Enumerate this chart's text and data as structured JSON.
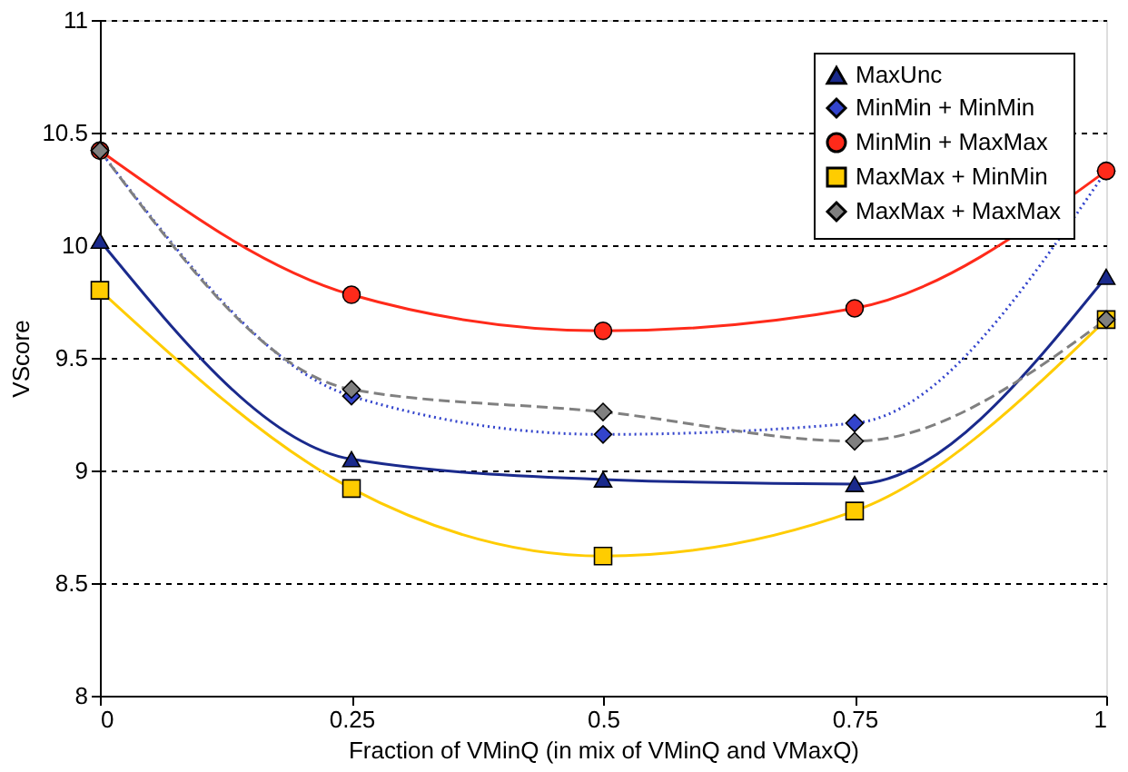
{
  "chart_data": {
    "type": "line",
    "xlabel": "Fraction of VMinQ (in mix of VMinQ and VMaxQ)",
    "ylabel": "VScore",
    "x": [
      0,
      0.25,
      0.5,
      0.75,
      1
    ],
    "series": [
      {
        "name": "MaxUnc",
        "color": "#1a2a8c",
        "marker": "triangle",
        "line_style": "solid",
        "values": [
          10.02,
          9.05,
          8.96,
          8.94,
          9.86
        ]
      },
      {
        "name": "MinMin + MinMin",
        "color": "#3344cc",
        "marker": "diamond",
        "line_style": "dotted",
        "values": [
          10.42,
          9.33,
          9.16,
          9.21,
          10.33
        ]
      },
      {
        "name": "MinMin + MaxMax",
        "color": "#ff2a1a",
        "marker": "circle",
        "line_style": "solid",
        "values": [
          10.42,
          9.78,
          9.62,
          9.72,
          10.33
        ]
      },
      {
        "name": "MaxMax + MinMin",
        "color": "#ffcc00",
        "marker": "square",
        "line_style": "solid",
        "values": [
          9.8,
          8.92,
          8.62,
          8.82,
          9.67
        ]
      },
      {
        "name": "MaxMax + MaxMax",
        "color": "#808080",
        "marker": "diamond",
        "line_style": "dashed",
        "values": [
          10.42,
          9.36,
          9.26,
          9.13,
          9.67
        ]
      }
    ],
    "xlim": [
      0,
      1
    ],
    "xticks": [
      0,
      0.25,
      0.5,
      0.75,
      1
    ],
    "ylim": [
      8,
      11
    ],
    "yticks": [
      8,
      8.5,
      9,
      9.5,
      10,
      10.5,
      11
    ],
    "grid": "y",
    "legend": "top right"
  }
}
